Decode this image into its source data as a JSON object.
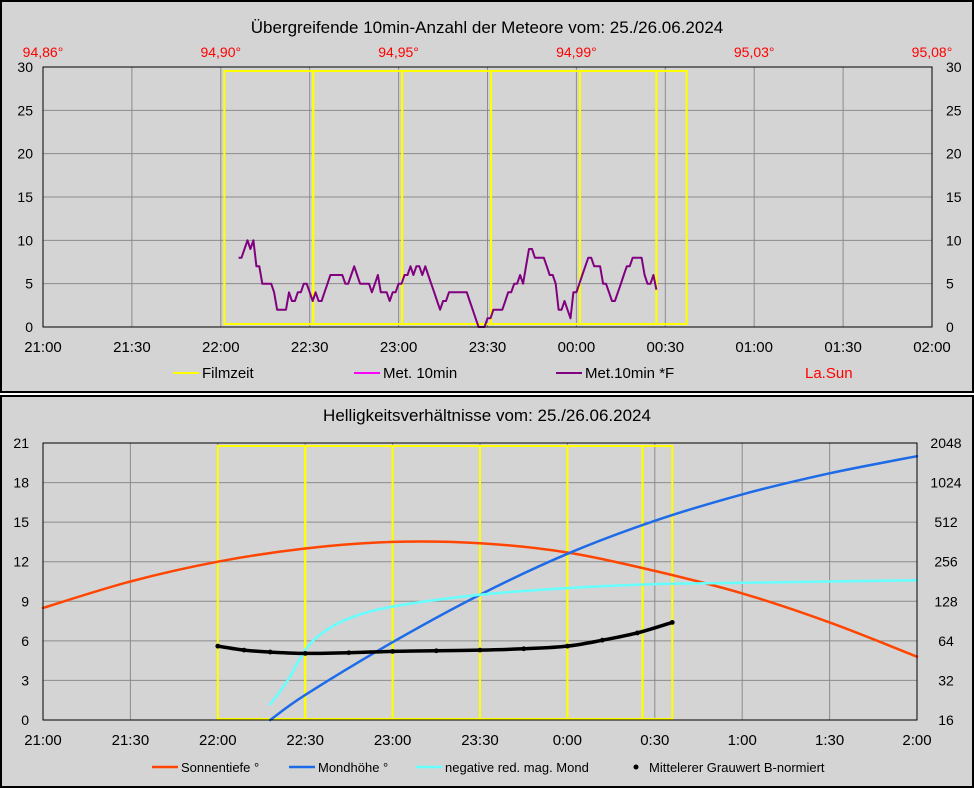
{
  "charts": {
    "top_title": "Übergreifende 10min-Anzahl der Meteore vom: 25./26.06.2024",
    "bottom_title": "Helligkeitsverhältnisse vom: 25./26.06.2024"
  },
  "colors": {
    "panel_bg": "#d4d4d4",
    "filmzeit": "#ffff00",
    "met10": "#ff00ff",
    "met10f": "#800080",
    "lasun": "#ff0000",
    "sonnentiefe": "#ff4500",
    "mondhoehe": "#1e6be8",
    "mag_mond": "#66ffff",
    "grauwert": "#000000"
  },
  "chart_data": [
    {
      "type": "line",
      "title": "Übergreifende 10min-Anzahl der Meteore vom: 25./26.06.2024",
      "x_tick_labels": [
        "21:00",
        "21:30",
        "22:00",
        "22:30",
        "23:00",
        "23:30",
        "00:00",
        "00:30",
        "01:00",
        "01:30",
        "02:00"
      ],
      "x_range_hours": [
        21,
        26
      ],
      "y_range": [
        0,
        30
      ],
      "y_ticks": [
        0,
        5,
        10,
        15,
        20,
        25,
        30
      ],
      "top_axis_labels": [
        "94,86°",
        "94,90°",
        "94,95°",
        "94,99°",
        "95,03°",
        "95,08°"
      ],
      "legend": [
        {
          "label": "Filmzeit",
          "color": "#ffff00"
        },
        {
          "label": "Met. 10min",
          "color": "#ff00ff"
        },
        {
          "label": "Met.10min *F",
          "color": "#800080"
        },
        {
          "label": "La.Sun",
          "color": "#ff0000",
          "text_only": true
        }
      ],
      "filmzeit_boundaries_hours": [
        22.02,
        22.52,
        23.02,
        23.52,
        24.02,
        24.45,
        24.62
      ],
      "series": [
        {
          "name": "Met.10min *F",
          "x_start": 22.1,
          "x_step": 0.0166667,
          "values": [
            8,
            8,
            9,
            10,
            9,
            10,
            7,
            7,
            5,
            5,
            5,
            5,
            4,
            2,
            2,
            2,
            2,
            4,
            3,
            3,
            4,
            4,
            5,
            5,
            4,
            3,
            4,
            3,
            3,
            4,
            5,
            6,
            6,
            6,
            6,
            6,
            5,
            5,
            6,
            7,
            6,
            5,
            5,
            5,
            5,
            4,
            5,
            6,
            4,
            4,
            4,
            3,
            4,
            4,
            5,
            5,
            6,
            6,
            7,
            6,
            7,
            7,
            6,
            7,
            6,
            5,
            4,
            3,
            2,
            3,
            3,
            4,
            4,
            4,
            4,
            4,
            4,
            4,
            3,
            2,
            1,
            0,
            0,
            0,
            1,
            1,
            2,
            2,
            2,
            2,
            3,
            4,
            4,
            5,
            5,
            6,
            5,
            7,
            9,
            9,
            8,
            8,
            8,
            8,
            7,
            6,
            6,
            5,
            2,
            2,
            3,
            2,
            1,
            4,
            4,
            5,
            6,
            7,
            8,
            8,
            7,
            7,
            7,
            5,
            5,
            4,
            3,
            3,
            4,
            5,
            6,
            7,
            7,
            8,
            8,
            8,
            8,
            6,
            5,
            5,
            6,
            4.3
          ]
        },
        {
          "name": "Met. 10min",
          "values": []
        }
      ]
    },
    {
      "type": "line",
      "title": "Helligkeitsverhältnisse vom: 25./26.06.2024",
      "x_tick_labels": [
        "21:00",
        "21:30",
        "22:00",
        "22:30",
        "23:00",
        "23:30",
        "0:00",
        "0:30",
        "1:00",
        "1:30",
        "2:00"
      ],
      "x_range_hours": [
        21,
        26
      ],
      "y_range": [
        0,
        21
      ],
      "y_ticks": [
        0,
        3,
        6,
        9,
        12,
        15,
        18,
        21
      ],
      "y2_ticks": [
        "16",
        "32",
        "64",
        "128",
        "256",
        "512",
        "1024",
        "2048"
      ],
      "y2_log2_range": [
        4,
        11
      ],
      "legend": [
        {
          "label": "Sonnentiefe °",
          "color": "#ff4500"
        },
        {
          "label": "Mondhöhe °",
          "color": "#1e6be8"
        },
        {
          "label": "negative red. mag. Mond",
          "color": "#66ffff"
        },
        {
          "label": "Mittelerer Grauwert B-normiert",
          "color": "#000000",
          "marker": "dot"
        }
      ],
      "filmzeit_boundaries_hours": [
        22.0,
        22.5,
        23.0,
        23.5,
        24.0,
        24.43,
        24.6
      ],
      "series": [
        {
          "name": "Sonnentiefe °",
          "x": [
            21.0,
            21.5,
            22.0,
            22.5,
            23.0,
            23.5,
            24.0,
            24.5,
            25.0,
            25.5,
            26.0
          ],
          "values": [
            8.5,
            10.5,
            12.0,
            13.0,
            13.5,
            13.4,
            12.7,
            11.3,
            9.6,
            7.4,
            4.8
          ]
        },
        {
          "name": "Mondhöhe °",
          "x": [
            22.3,
            22.5,
            23.0,
            23.5,
            24.0,
            24.5,
            25.0,
            25.5,
            26.0
          ],
          "values": [
            0,
            1.9,
            5.9,
            9.5,
            12.6,
            15.1,
            17.1,
            18.7,
            20.0
          ]
        },
        {
          "name": "negative red. mag. Mond",
          "x": [
            22.3,
            22.4,
            22.5,
            22.6,
            22.75,
            23.0,
            23.5,
            24.0,
            24.5,
            25.0,
            25.5,
            26.0
          ],
          "values": [
            1.2,
            3.0,
            5.3,
            6.6,
            7.7,
            8.6,
            9.5,
            10.0,
            10.3,
            10.4,
            10.5,
            10.6
          ]
        },
        {
          "name": "Mittelerer Grauwert B-normiert",
          "x": [
            22.0,
            22.15,
            22.3,
            22.5,
            22.75,
            23.0,
            23.25,
            23.5,
            23.75,
            24.0,
            24.2,
            24.4,
            24.6
          ],
          "values": [
            5.6,
            5.3,
            5.15,
            5.05,
            5.1,
            5.2,
            5.25,
            5.3,
            5.4,
            5.6,
            6.05,
            6.6,
            7.4
          ]
        }
      ]
    }
  ]
}
